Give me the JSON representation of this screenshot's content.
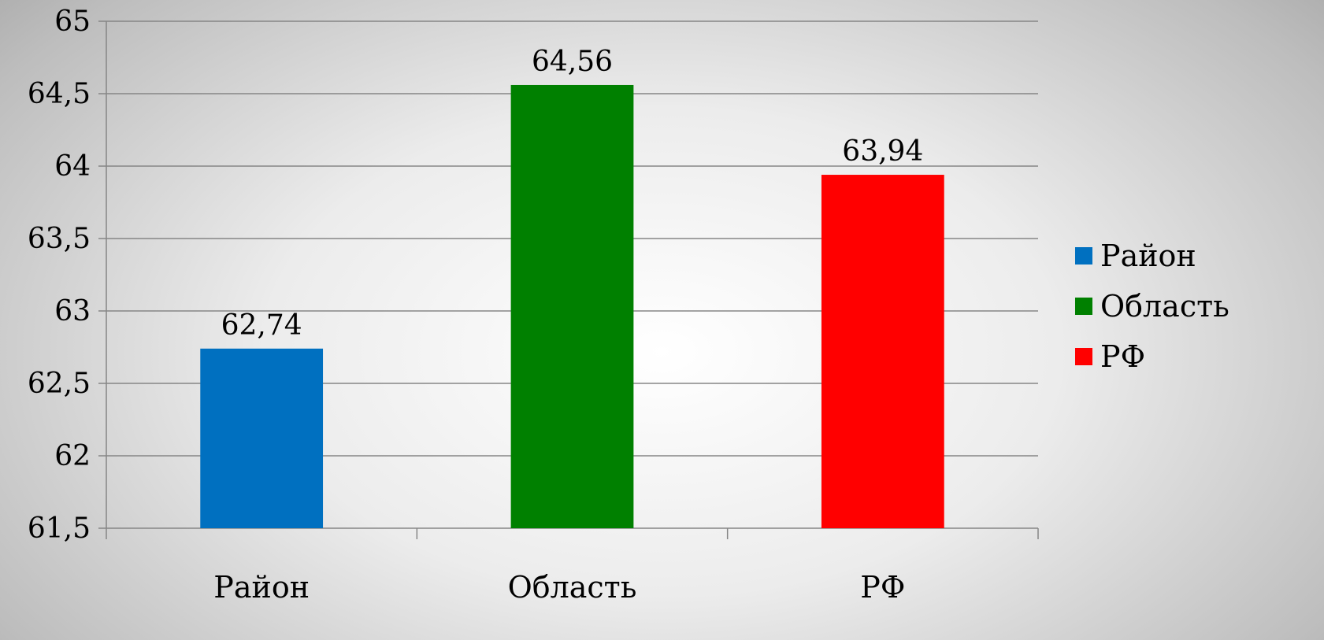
{
  "chart_data": {
    "type": "bar",
    "categories": [
      "Район",
      "Область",
      "РФ"
    ],
    "values": [
      62.74,
      64.56,
      63.94
    ],
    "value_labels": [
      "62,74",
      "64,56",
      "63,94"
    ],
    "colors": [
      "#0070c0",
      "#008000",
      "#ff0000"
    ],
    "ylim": [
      61.5,
      65
    ],
    "yticks": [
      61.5,
      62,
      62.5,
      63,
      63.5,
      64,
      64.5,
      65
    ],
    "ytick_labels": [
      "61,5",
      "62",
      "62,5",
      "63",
      "63,5",
      "64",
      "64,5",
      "65"
    ],
    "grid": true,
    "legend": {
      "position": "right",
      "entries": [
        "Район",
        "Область",
        "РФ"
      ]
    },
    "title": "",
    "xlabel": "",
    "ylabel": ""
  }
}
